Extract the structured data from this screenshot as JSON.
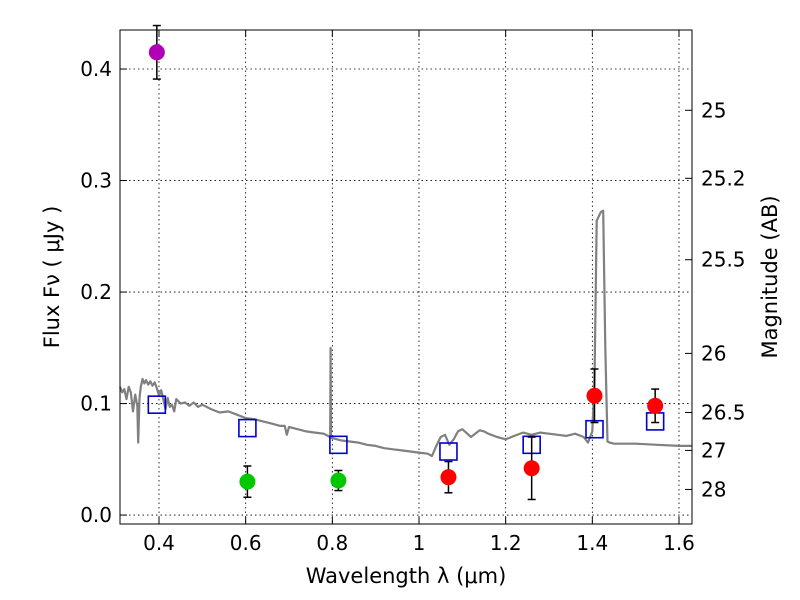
{
  "chart_data": {
    "type": "scatter",
    "xlabel": "Wavelength  λ (μm)",
    "ylabel": "Flux  Fν  ( μJy )",
    "y2label": "Magnitude (AB)",
    "xlim": [
      0.31,
      1.63
    ],
    "ylim": [
      -0.008,
      0.435
    ],
    "xticks": [
      0.4,
      0.6,
      0.8,
      1.0,
      1.2,
      1.4,
      1.6
    ],
    "xtick_labels": [
      "0.4",
      "0.6",
      "0.8",
      "1",
      "1.2",
      "1.4",
      "1.6"
    ],
    "yticks": [
      0.0,
      0.1,
      0.2,
      0.3,
      0.4
    ],
    "ytick_labels": [
      "0.0",
      "0.1",
      "0.2",
      "0.3",
      "0.4"
    ],
    "right_axis_ticks": [
      {
        "label": "25",
        "flux": 0.363
      },
      {
        "label": "25.2",
        "flux": 0.302
      },
      {
        "label": "25.5",
        "flux": 0.229
      },
      {
        "label": "26",
        "flux": 0.145
      },
      {
        "label": "26.5",
        "flux": 0.092
      },
      {
        "label": "27",
        "flux": 0.058
      },
      {
        "label": "28",
        "flux": 0.023
      }
    ],
    "grid": true,
    "template_spectrum": {
      "name": "SED template",
      "color": "#808080",
      "x": [
        0.31,
        0.315,
        0.32,
        0.325,
        0.33,
        0.335,
        0.34,
        0.345,
        0.35,
        0.352,
        0.355,
        0.358,
        0.362,
        0.366,
        0.37,
        0.375,
        0.38,
        0.385,
        0.39,
        0.395,
        0.4,
        0.405,
        0.41,
        0.415,
        0.42,
        0.425,
        0.43,
        0.435,
        0.44,
        0.45,
        0.46,
        0.47,
        0.48,
        0.49,
        0.5,
        0.52,
        0.54,
        0.56,
        0.58,
        0.6,
        0.62,
        0.64,
        0.66,
        0.68,
        0.69,
        0.695,
        0.7,
        0.72,
        0.74,
        0.76,
        0.78,
        0.795,
        0.796,
        0.797,
        0.798,
        0.8,
        0.82,
        0.84,
        0.86,
        0.88,
        0.9,
        0.92,
        0.94,
        0.96,
        0.98,
        1.0,
        1.02,
        1.03,
        1.04,
        1.05,
        1.06,
        1.07,
        1.08,
        1.09,
        1.1,
        1.12,
        1.14,
        1.15,
        1.16,
        1.18,
        1.2,
        1.22,
        1.24,
        1.26,
        1.28,
        1.3,
        1.32,
        1.34,
        1.36,
        1.38,
        1.39,
        1.4,
        1.405,
        1.41,
        1.415,
        1.42,
        1.425,
        1.43,
        1.435,
        1.44,
        1.45,
        1.5,
        1.55,
        1.6,
        1.63
      ],
      "y": [
        0.115,
        0.11,
        0.113,
        0.104,
        0.115,
        0.11,
        0.093,
        0.108,
        0.098,
        0.065,
        0.105,
        0.115,
        0.122,
        0.118,
        0.121,
        0.117,
        0.12,
        0.116,
        0.119,
        0.114,
        0.107,
        0.112,
        0.104,
        0.095,
        0.105,
        0.097,
        0.099,
        0.093,
        0.104,
        0.1,
        0.101,
        0.098,
        0.101,
        0.097,
        0.099,
        0.095,
        0.092,
        0.093,
        0.09,
        0.087,
        0.086,
        0.084,
        0.082,
        0.08,
        0.08,
        0.072,
        0.079,
        0.077,
        0.075,
        0.074,
        0.073,
        0.07,
        0.15,
        0.07,
        0.069,
        0.069,
        0.067,
        0.066,
        0.065,
        0.063,
        0.062,
        0.06,
        0.059,
        0.058,
        0.057,
        0.056,
        0.055,
        0.053,
        0.062,
        0.07,
        0.072,
        0.063,
        0.068,
        0.075,
        0.077,
        0.07,
        0.076,
        0.075,
        0.073,
        0.07,
        0.068,
        0.071,
        0.074,
        0.072,
        0.074,
        0.073,
        0.072,
        0.071,
        0.073,
        0.07,
        0.065,
        0.075,
        0.12,
        0.264,
        0.268,
        0.272,
        0.273,
        0.15,
        0.066,
        0.065,
        0.064,
        0.064,
        0.063,
        0.062,
        0.062
      ]
    },
    "model_points": {
      "name": "model photometry",
      "marker": "open-square",
      "color": "#0000cc",
      "x": [
        0.395,
        0.604,
        0.814,
        1.068,
        1.26,
        1.405,
        1.545
      ],
      "y": [
        0.099,
        0.078,
        0.063,
        0.057,
        0.063,
        0.077,
        0.084
      ]
    },
    "observations": [
      {
        "name": "purple point",
        "color": "#b000b5",
        "x": 0.395,
        "y": 0.415,
        "err": 0.024
      },
      {
        "name": "green point 1",
        "color": "#00c800",
        "x": 0.604,
        "y": 0.03,
        "err": 0.014
      },
      {
        "name": "green point 2",
        "color": "#00c800",
        "x": 0.814,
        "y": 0.031,
        "err": 0.009
      },
      {
        "name": "red point 1",
        "color": "#ff0000",
        "x": 1.068,
        "y": 0.034,
        "err": 0.014
      },
      {
        "name": "red point 2",
        "color": "#ff0000",
        "x": 1.26,
        "y": 0.042,
        "err": 0.028
      },
      {
        "name": "red point 3",
        "color": "#ff0000",
        "x": 1.405,
        "y": 0.107,
        "err": 0.024
      },
      {
        "name": "red point 4",
        "color": "#ff0000",
        "x": 1.545,
        "y": 0.098,
        "err": 0.015
      }
    ]
  }
}
